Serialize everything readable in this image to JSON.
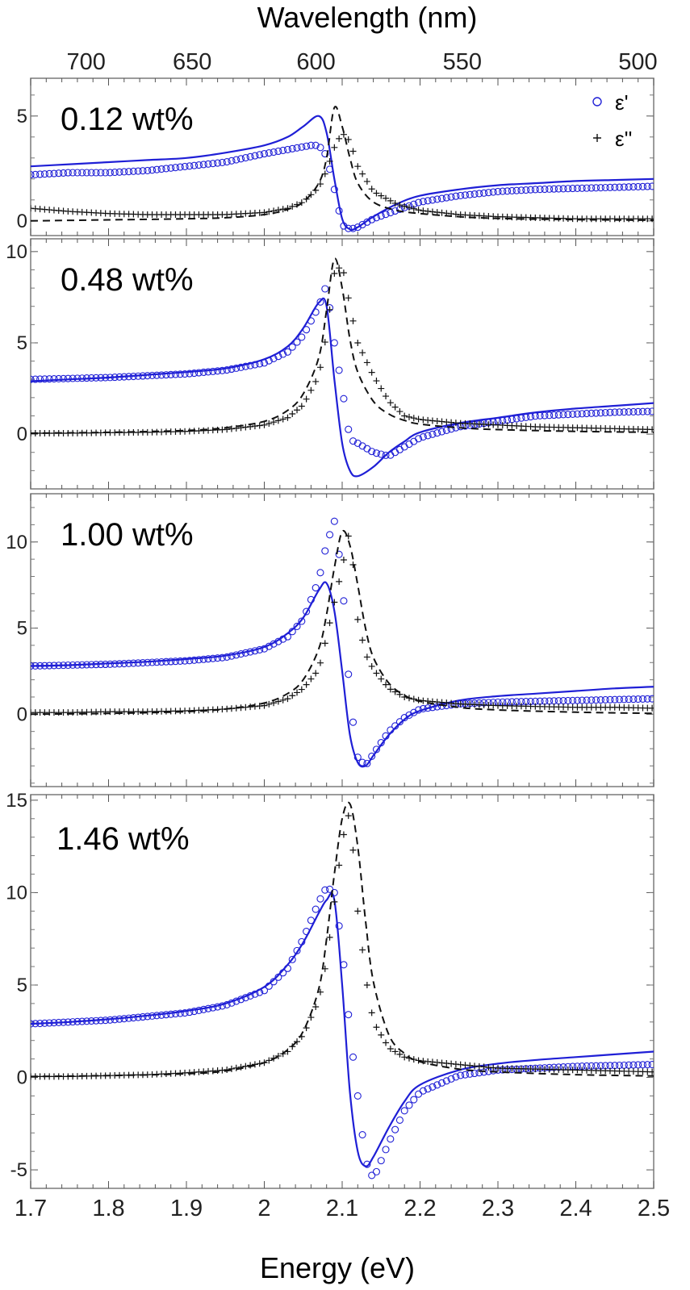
{
  "chart_data": {
    "type": "line",
    "x_axis": {
      "label": "Energy (eV)",
      "range": [
        1.7,
        2.5
      ],
      "ticks": [
        "1.7",
        "1.8",
        "1.9",
        "2",
        "2.1",
        "2.2",
        "2.3",
        "2.4",
        "2.5"
      ]
    },
    "top_axis": {
      "label": "Wavelength (nm)",
      "ticks": [
        "700",
        "650",
        "600",
        "550",
        "500"
      ]
    },
    "legend": {
      "position": "top-right",
      "entries": [
        {
          "symbol": "o",
          "label": "ε'"
        },
        {
          "symbol": "+",
          "label": "ε''"
        }
      ]
    },
    "colors": {
      "eps_real": "#1f1fd6",
      "eps_imag": "#111111"
    },
    "panels": [
      {
        "label": "0.12 wt%",
        "ylim": [
          -0.7,
          6.8
        ],
        "yticks": [
          "0",
          "5"
        ],
        "series": [
          {
            "name": "ε' data",
            "style": "markers-o",
            "x": [
              1.7,
              1.75,
              1.8,
              1.85,
              1.9,
              1.95,
              2.0,
              2.03,
              2.06,
              2.07,
              2.08,
              2.09,
              2.1,
              2.11,
              2.12,
              2.14,
              2.17,
              2.2,
              2.25,
              2.3,
              2.35,
              2.4,
              2.45,
              2.5
            ],
            "y": [
              2.2,
              2.3,
              2.3,
              2.4,
              2.6,
              2.8,
              3.2,
              3.4,
              3.6,
              3.6,
              3.1,
              1.5,
              -0.2,
              -0.4,
              -0.3,
              0.1,
              0.5,
              0.9,
              1.2,
              1.4,
              1.5,
              1.55,
              1.6,
              1.65
            ]
          },
          {
            "name": "ε' fit",
            "style": "line",
            "x": [
              1.7,
              1.75,
              1.8,
              1.85,
              1.9,
              1.95,
              2.0,
              2.03,
              2.05,
              2.07,
              2.08,
              2.09,
              2.1,
              2.11,
              2.12,
              2.14,
              2.17,
              2.2,
              2.25,
              2.3,
              2.35,
              2.4,
              2.45,
              2.5
            ],
            "y": [
              2.6,
              2.7,
              2.8,
              2.9,
              3.0,
              3.25,
              3.6,
              4.0,
              4.5,
              5.0,
              4.2,
              2.0,
              0.1,
              -0.4,
              -0.3,
              0.2,
              0.8,
              1.2,
              1.5,
              1.7,
              1.8,
              1.9,
              1.95,
              2.0
            ]
          },
          {
            "name": "ε'' data",
            "style": "markers-plus",
            "x": [
              1.7,
              1.75,
              1.8,
              1.85,
              1.9,
              1.95,
              2.0,
              2.03,
              2.05,
              2.07,
              2.08,
              2.09,
              2.1,
              2.11,
              2.12,
              2.14,
              2.17,
              2.2,
              2.25,
              2.3,
              2.35,
              2.4,
              2.45,
              2.5
            ],
            "y": [
              0.6,
              0.45,
              0.35,
              0.3,
              0.3,
              0.3,
              0.4,
              0.6,
              0.9,
              1.6,
              2.4,
              3.5,
              4.2,
              3.8,
              2.6,
              1.4,
              0.8,
              0.5,
              0.3,
              0.2,
              0.15,
              0.1,
              0.1,
              0.1
            ]
          },
          {
            "name": "ε'' fit",
            "style": "dashed",
            "x": [
              1.7,
              1.8,
              1.9,
              1.95,
              2.0,
              2.03,
              2.05,
              2.07,
              2.08,
              2.09,
              2.1,
              2.11,
              2.12,
              2.14,
              2.17,
              2.2,
              2.25,
              2.3,
              2.4,
              2.5
            ],
            "y": [
              0.0,
              0.05,
              0.1,
              0.15,
              0.3,
              0.55,
              0.9,
              1.8,
              3.0,
              5.4,
              4.5,
              3.0,
              1.8,
              0.9,
              0.5,
              0.35,
              0.2,
              0.12,
              0.06,
              0.03
            ]
          }
        ]
      },
      {
        "label": "0.48 wt%",
        "ylim": [
          -3.0,
          10.7
        ],
        "yticks": [
          "0",
          "5",
          "10"
        ],
        "series": [
          {
            "name": "ε' data",
            "style": "markers-o",
            "x": [
              1.7,
              1.75,
              1.8,
              1.85,
              1.9,
              1.95,
              2.0,
              2.03,
              2.05,
              2.07,
              2.08,
              2.09,
              2.1,
              2.11,
              2.12,
              2.14,
              2.16,
              2.18,
              2.2,
              2.25,
              2.3,
              2.35,
              2.4,
              2.45,
              2.5
            ],
            "y": [
              3.0,
              3.05,
              3.1,
              3.2,
              3.3,
              3.5,
              3.9,
              4.5,
              5.4,
              7.0,
              8.2,
              5.0,
              2.5,
              -0.3,
              -0.5,
              -1.0,
              -1.2,
              -0.7,
              -0.2,
              0.4,
              0.7,
              1.0,
              1.1,
              1.2,
              1.25
            ]
          },
          {
            "name": "ε' fit",
            "style": "line",
            "x": [
              1.7,
              1.75,
              1.8,
              1.85,
              1.9,
              1.95,
              2.0,
              2.03,
              2.05,
              2.07,
              2.08,
              2.09,
              2.1,
              2.11,
              2.12,
              2.14,
              2.16,
              2.18,
              2.2,
              2.25,
              2.3,
              2.35,
              2.4,
              2.45,
              2.5
            ],
            "y": [
              2.9,
              3.0,
              3.1,
              3.25,
              3.4,
              3.6,
              4.1,
              4.8,
              5.8,
              7.2,
              7.0,
              3.0,
              -0.5,
              -2.0,
              -2.3,
              -1.8,
              -1.0,
              -0.4,
              0.1,
              0.6,
              0.9,
              1.2,
              1.4,
              1.55,
              1.7
            ]
          },
          {
            "name": "ε'' data",
            "style": "markers-plus",
            "x": [
              1.7,
              1.75,
              1.8,
              1.85,
              1.9,
              1.95,
              2.0,
              2.03,
              2.05,
              2.07,
              2.08,
              2.09,
              2.1,
              2.11,
              2.12,
              2.14,
              2.16,
              2.18,
              2.2,
              2.25,
              2.3,
              2.35,
              2.4,
              2.45,
              2.5
            ],
            "y": [
              0.05,
              0.05,
              0.08,
              0.1,
              0.15,
              0.25,
              0.5,
              0.9,
              1.6,
              3.2,
              5.5,
              8.8,
              9.3,
              7.0,
              5.0,
              3.2,
              1.8,
              1.0,
              0.8,
              0.6,
              0.5,
              0.4,
              0.35,
              0.3,
              0.25
            ]
          },
          {
            "name": "ε'' fit",
            "style": "dashed",
            "x": [
              1.7,
              1.8,
              1.9,
              1.95,
              2.0,
              2.03,
              2.05,
              2.07,
              2.08,
              2.09,
              2.1,
              2.11,
              2.12,
              2.14,
              2.16,
              2.18,
              2.2,
              2.25,
              2.3,
              2.4,
              2.5
            ],
            "y": [
              0.05,
              0.1,
              0.2,
              0.35,
              0.7,
              1.3,
              2.2,
              4.2,
              6.8,
              9.6,
              8.0,
              5.2,
              3.4,
              1.8,
              1.1,
              0.75,
              0.55,
              0.35,
              0.25,
              0.15,
              0.1
            ]
          }
        ]
      },
      {
        "label": "1.00 wt%",
        "ylim": [
          -4.2,
          12.8
        ],
        "yticks": [
          "0",
          "5",
          "10"
        ],
        "series": [
          {
            "name": "ε' data",
            "style": "markers-o",
            "x": [
              1.7,
              1.75,
              1.8,
              1.85,
              1.9,
              1.95,
              2.0,
              2.03,
              2.05,
              2.07,
              2.08,
              2.09,
              2.1,
              2.11,
              2.12,
              2.13,
              2.14,
              2.16,
              2.18,
              2.2,
              2.25,
              2.3,
              2.35,
              2.4,
              2.45,
              2.5
            ],
            "y": [
              2.8,
              2.85,
              2.9,
              3.0,
              3.1,
              3.3,
              3.8,
              4.5,
              5.5,
              7.8,
              9.9,
              11.2,
              8.0,
              0.9,
              -2.5,
              -3.0,
              -2.3,
              -1.0,
              -0.2,
              0.3,
              0.6,
              0.7,
              0.75,
              0.8,
              0.85,
              0.9
            ]
          },
          {
            "name": "ε' fit",
            "style": "line",
            "x": [
              1.7,
              1.75,
              1.8,
              1.85,
              1.9,
              1.95,
              2.0,
              2.03,
              2.05,
              2.07,
              2.08,
              2.09,
              2.1,
              2.11,
              2.12,
              2.13,
              2.14,
              2.16,
              2.18,
              2.2,
              2.25,
              2.3,
              2.35,
              2.4,
              2.45,
              2.5
            ],
            "y": [
              2.8,
              2.85,
              2.95,
              3.05,
              3.2,
              3.4,
              3.9,
              4.7,
              5.6,
              7.2,
              7.6,
              6.0,
              2.5,
              -1.2,
              -2.8,
              -3.0,
              -2.4,
              -1.2,
              -0.3,
              0.2,
              0.8,
              1.05,
              1.2,
              1.35,
              1.5,
              1.6
            ]
          },
          {
            "name": "ε'' data",
            "style": "markers-plus",
            "x": [
              1.7,
              1.75,
              1.8,
              1.85,
              1.9,
              1.95,
              2.0,
              2.03,
              2.05,
              2.07,
              2.08,
              2.09,
              2.1,
              2.11,
              2.12,
              2.13,
              2.14,
              2.16,
              2.18,
              2.2,
              2.25,
              2.3,
              2.35,
              2.4,
              2.45,
              2.5
            ],
            "y": [
              0.1,
              0.1,
              0.15,
              0.15,
              0.2,
              0.3,
              0.5,
              0.9,
              1.5,
              2.6,
              4.5,
              6.5,
              8.5,
              10.8,
              5.5,
              3.5,
              2.6,
              1.5,
              1.0,
              0.8,
              0.6,
              0.5,
              0.45,
              0.4,
              0.4,
              0.35
            ]
          },
          {
            "name": "ε'' fit",
            "style": "dashed",
            "x": [
              1.7,
              1.8,
              1.9,
              1.95,
              2.0,
              2.03,
              2.05,
              2.07,
              2.08,
              2.09,
              2.1,
              2.11,
              2.12,
              2.13,
              2.14,
              2.16,
              2.18,
              2.2,
              2.25,
              2.3,
              2.4,
              2.5
            ],
            "y": [
              0.0,
              0.05,
              0.15,
              0.3,
              0.65,
              1.2,
              2.0,
              3.8,
              5.8,
              8.5,
              10.6,
              9.8,
              7.5,
              5.0,
              3.3,
              1.8,
              1.1,
              0.75,
              0.4,
              0.25,
              0.12,
              0.05
            ]
          }
        ]
      },
      {
        "label": "1.46 wt%",
        "ylim": [
          -6.0,
          15.3
        ],
        "yticks": [
          "-5",
          "0",
          "5",
          "10",
          "15"
        ],
        "series": [
          {
            "name": "ε' data",
            "style": "markers-o",
            "x": [
              1.7,
              1.75,
              1.8,
              1.85,
              1.9,
              1.95,
              2.0,
              2.03,
              2.05,
              2.07,
              2.08,
              2.09,
              2.1,
              2.11,
              2.12,
              2.13,
              2.14,
              2.16,
              2.18,
              2.2,
              2.25,
              2.3,
              2.35,
              2.4,
              2.45,
              2.5
            ],
            "y": [
              2.9,
              3.0,
              3.1,
              3.3,
              3.5,
              3.9,
              4.7,
              5.9,
              7.5,
              9.5,
              10.3,
              10.0,
              7.0,
              2.5,
              -1.0,
              -4.5,
              -5.5,
              -3.5,
              -1.8,
              -0.8,
              0.1,
              0.4,
              0.5,
              0.6,
              0.65,
              0.7
            ]
          },
          {
            "name": "ε' fit",
            "style": "line",
            "x": [
              1.7,
              1.75,
              1.8,
              1.85,
              1.9,
              1.95,
              2.0,
              2.03,
              2.05,
              2.07,
              2.08,
              2.09,
              2.1,
              2.11,
              2.12,
              2.13,
              2.14,
              2.16,
              2.18,
              2.2,
              2.25,
              2.3,
              2.35,
              2.4,
              2.45,
              2.5
            ],
            "y": [
              2.9,
              3.0,
              3.15,
              3.35,
              3.6,
              4.0,
              4.9,
              6.1,
              7.3,
              8.9,
              9.6,
              9.6,
              5.0,
              -0.8,
              -4.0,
              -4.8,
              -4.3,
              -2.7,
              -1.3,
              -0.4,
              0.4,
              0.75,
              0.95,
              1.1,
              1.25,
              1.4
            ]
          },
          {
            "name": "ε'' data",
            "style": "markers-plus",
            "x": [
              1.7,
              1.75,
              1.8,
              1.85,
              1.9,
              1.95,
              2.0,
              2.03,
              2.05,
              2.07,
              2.08,
              2.09,
              2.1,
              2.11,
              2.12,
              2.13,
              2.14,
              2.16,
              2.18,
              2.2,
              2.25,
              2.3,
              2.35,
              2.4,
              2.45,
              2.5
            ],
            "y": [
              0.05,
              0.05,
              0.1,
              0.15,
              0.25,
              0.4,
              0.8,
              1.4,
              2.3,
              4.2,
              6.3,
              9.5,
              12.8,
              14.5,
              9.0,
              5.5,
              3.0,
              1.6,
              1.1,
              0.9,
              0.7,
              0.5,
              0.45,
              0.4,
              0.35,
              0.3
            ]
          },
          {
            "name": "ε'' fit",
            "style": "dashed",
            "x": [
              1.7,
              1.8,
              1.9,
              1.95,
              2.0,
              2.03,
              2.05,
              2.07,
              2.08,
              2.09,
              2.1,
              2.11,
              2.12,
              2.13,
              2.14,
              2.16,
              2.18,
              2.2,
              2.25,
              2.3,
              2.4,
              2.5
            ],
            "y": [
              0.05,
              0.1,
              0.2,
              0.35,
              0.8,
              1.5,
              2.5,
              4.8,
              7.5,
              11.0,
              14.0,
              14.8,
              12.5,
              8.5,
              5.2,
              2.3,
              1.3,
              0.85,
              0.45,
              0.3,
              0.15,
              0.08
            ]
          }
        ]
      }
    ]
  }
}
